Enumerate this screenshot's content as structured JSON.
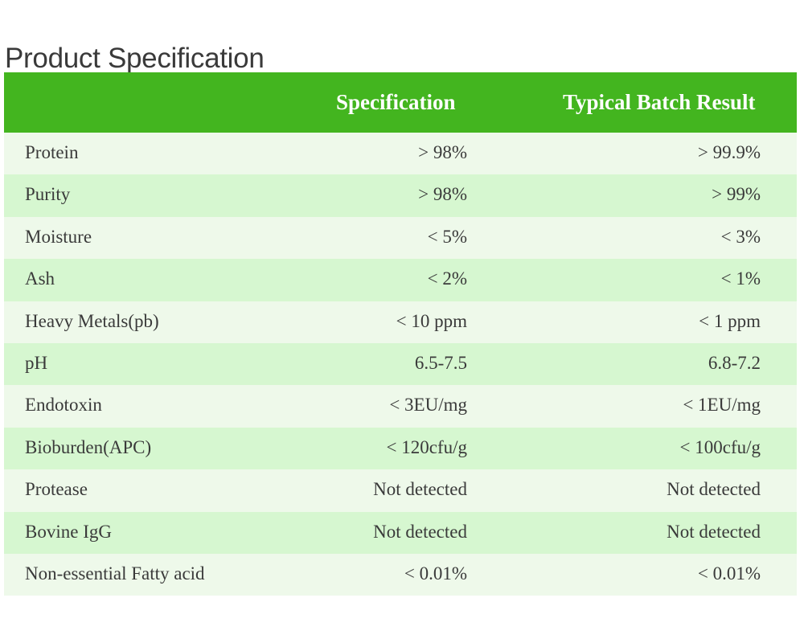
{
  "page": {
    "title": "Product Specification"
  },
  "table": {
    "headers": [
      "",
      "Specification",
      "Typical Batch Result"
    ],
    "rows": [
      {
        "parameter": "Protein",
        "specification": "> 98%",
        "typical": "> 99.9%"
      },
      {
        "parameter": "Purity",
        "specification": "> 98%",
        "typical": "> 99%"
      },
      {
        "parameter": "Moisture",
        "specification": "< 5%",
        "typical": "< 3%"
      },
      {
        "parameter": "Ash",
        "specification": "< 2%",
        "typical": "< 1%"
      },
      {
        "parameter": "Heavy Metals(pb)",
        "specification": "< 10 ppm",
        "typical": "< 1 ppm"
      },
      {
        "parameter": "pH",
        "specification": "6.5-7.5",
        "typical": "6.8-7.2"
      },
      {
        "parameter": "Endotoxin",
        "specification": "< 3EU/mg",
        "typical": "< 1EU/mg"
      },
      {
        "parameter": "Bioburden(APC)",
        "specification": "< 120cfu/g",
        "typical": "< 100cfu/g"
      },
      {
        "parameter": "Protease",
        "specification": "Not detected",
        "typical": "Not detected"
      },
      {
        "parameter": "Bovine IgG",
        "specification": "Not detected",
        "typical": "Not detected"
      },
      {
        "parameter": "Non-essential Fatty acid",
        "specification": "< 0.01%",
        "typical": "< 0.01%"
      }
    ]
  },
  "colors": {
    "header_bg": "#43b51f",
    "row_light": "#eef9ea",
    "row_dark": "#d6f7d0"
  }
}
